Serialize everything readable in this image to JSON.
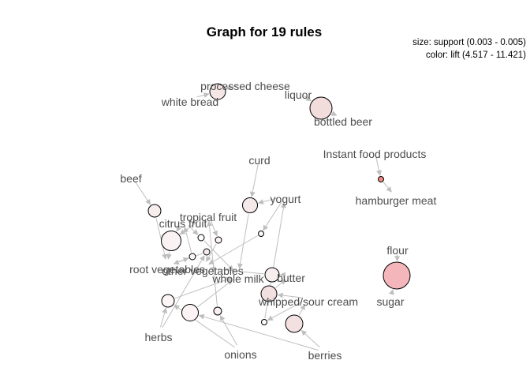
{
  "title": "Graph for 19 rules",
  "legend": {
    "size_text": "size: support (0.003 - 0.005)",
    "color_text": "color: lift (4.517 - 11.421)"
  },
  "items": [
    {
      "id": "processed_cheese",
      "label": "processed cheese"
    },
    {
      "id": "white_bread",
      "label": "white bread"
    },
    {
      "id": "liquor",
      "label": "liquor"
    },
    {
      "id": "bottled_beer",
      "label": "bottled beer"
    },
    {
      "id": "instant_food",
      "label": "Instant food products"
    },
    {
      "id": "hamburger_meat",
      "label": "hamburger meat"
    },
    {
      "id": "curd",
      "label": "curd"
    },
    {
      "id": "yogurt",
      "label": "yogurt"
    },
    {
      "id": "beef",
      "label": "beef"
    },
    {
      "id": "tropical_fruit",
      "label": "tropical fruit"
    },
    {
      "id": "citrus_fruit",
      "label": "citrus fruit"
    },
    {
      "id": "root_vegetables",
      "label": "root vegetables"
    },
    {
      "id": "other_vegetables",
      "label": "other vegetables"
    },
    {
      "id": "whole_milk",
      "label": "whole milk"
    },
    {
      "id": "butter",
      "label": "butter"
    },
    {
      "id": "whipped_sour_cream",
      "label": "whipped/sour cream"
    },
    {
      "id": "herbs",
      "label": "herbs"
    },
    {
      "id": "onions",
      "label": "onions"
    },
    {
      "id": "berries",
      "label": "berries"
    },
    {
      "id": "flour",
      "label": "flour"
    },
    {
      "id": "sugar",
      "label": "sugar"
    }
  ],
  "rules": [
    {
      "id": "r1",
      "fill": "#f5e6e6"
    },
    {
      "id": "r2",
      "fill": "#f2dcdc"
    },
    {
      "id": "r3",
      "fill": "#ef8b7f"
    },
    {
      "id": "r4",
      "fill": "#f4b6bb"
    },
    {
      "id": "r5",
      "fill": "#f8eded"
    },
    {
      "id": "r6",
      "fill": "#f6e9e9"
    },
    {
      "id": "r7",
      "fill": "#fbf3f3"
    },
    {
      "id": "r8",
      "fill": "#ffffff"
    },
    {
      "id": "r9",
      "fill": "#fbf1f1"
    },
    {
      "id": "r10",
      "fill": "#fdf7f7"
    },
    {
      "id": "r11",
      "fill": "#fcf5f5"
    },
    {
      "id": "r12",
      "fill": "#f7eaea"
    },
    {
      "id": "r13",
      "fill": "#fdf6f6"
    },
    {
      "id": "r14",
      "fill": "#f9efef"
    },
    {
      "id": "r15",
      "fill": "#f8eeee"
    },
    {
      "id": "r16",
      "fill": "#f2e0e0"
    },
    {
      "id": "r17",
      "fill": "#fcf4f4"
    },
    {
      "id": "r18",
      "fill": "#ffffff"
    },
    {
      "id": "r19",
      "fill": "#f3e1e1"
    }
  ],
  "edges": [
    [
      "processed_cheese",
      "r1"
    ],
    [
      "white_bread",
      "r1"
    ],
    [
      "liquor",
      "r2"
    ],
    [
      "r2",
      "bottled_beer"
    ],
    [
      "instant_food",
      "r3"
    ],
    [
      "r3",
      "hamburger_meat"
    ],
    [
      "flour",
      "r4"
    ],
    [
      "sugar",
      "r4"
    ],
    [
      "beef",
      "r5"
    ],
    [
      "r5",
      "root_vegetables"
    ],
    [
      "curd",
      "r6"
    ],
    [
      "yogurt",
      "r6"
    ],
    [
      "r6",
      "whole_milk"
    ],
    [
      "citrus_fruit",
      "r7"
    ],
    [
      "tropical_fruit",
      "r7"
    ],
    [
      "r7",
      "root_vegetables"
    ],
    [
      "citrus_fruit",
      "r8"
    ],
    [
      "r8",
      "whole_milk"
    ],
    [
      "tropical_fruit",
      "r9"
    ],
    [
      "r9",
      "other_vegetables"
    ],
    [
      "yogurt",
      "r10"
    ],
    [
      "r10",
      "other_vegetables"
    ],
    [
      "root_vegetables",
      "r11"
    ],
    [
      "r11",
      "citrus_fruit"
    ],
    [
      "herbs",
      "r12"
    ],
    [
      "r12",
      "root_vegetables"
    ],
    [
      "herbs",
      "r13"
    ],
    [
      "onions",
      "r13"
    ],
    [
      "r13",
      "whole_milk"
    ],
    [
      "onions",
      "r14"
    ],
    [
      "r14",
      "tropical_fruit"
    ],
    [
      "butter",
      "r15"
    ],
    [
      "r15",
      "other_vegetables"
    ],
    [
      "whipped_sour_cream",
      "r16"
    ],
    [
      "r16",
      "butter"
    ],
    [
      "berries",
      "r17"
    ],
    [
      "r17",
      "whole_milk"
    ],
    [
      "whipped_sour_cream",
      "r18"
    ],
    [
      "r18",
      "yogurt"
    ],
    [
      "berries",
      "r19"
    ],
    [
      "r19",
      "whipped_sour_cream"
    ]
  ]
}
